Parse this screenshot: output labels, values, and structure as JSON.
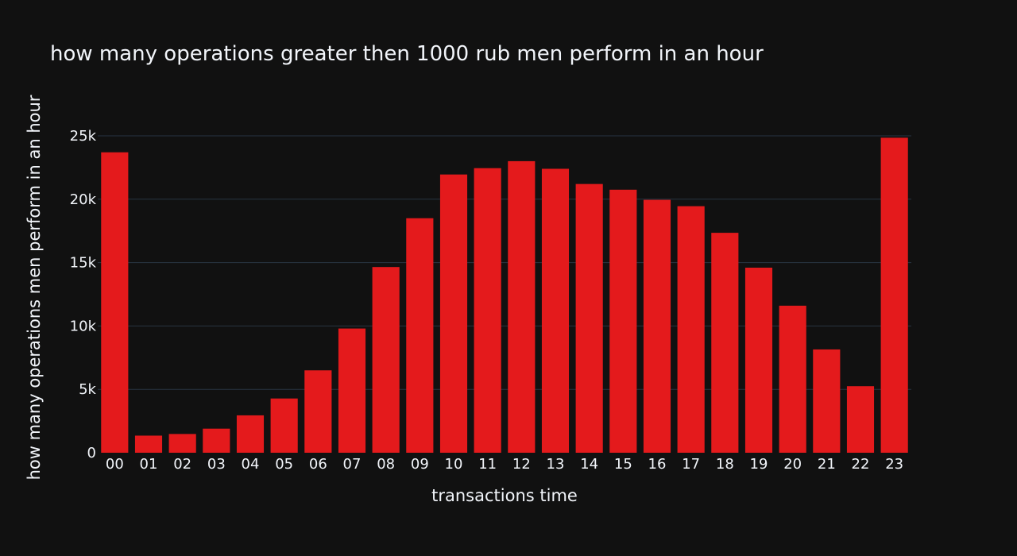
{
  "chart_data": {
    "type": "bar",
    "title": "how many operations greater then 1000 rub men perform in an hour",
    "xlabel": "transactions time",
    "ylabel": "how many operations men perform in an hour",
    "categories": [
      "00",
      "01",
      "02",
      "03",
      "04",
      "05",
      "06",
      "07",
      "08",
      "09",
      "10",
      "11",
      "12",
      "13",
      "14",
      "15",
      "16",
      "17",
      "18",
      "19",
      "20",
      "21",
      "22",
      "23"
    ],
    "values": [
      23700,
      1350,
      1480,
      1900,
      2950,
      4280,
      6500,
      9800,
      14650,
      18500,
      21950,
      22450,
      23000,
      22400,
      21200,
      20750,
      19950,
      19450,
      17350,
      14600,
      11600,
      8150,
      5250,
      24850
    ],
    "ylim": [
      0,
      25000
    ],
    "yticks": [
      0,
      5000,
      10000,
      15000,
      20000,
      25000
    ],
    "ytick_labels": [
      "0",
      "5k",
      "10k",
      "15k",
      "20k",
      "25k"
    ],
    "bar_color": "#e41a1c",
    "background_color": "#111111",
    "grid_color": "#283442",
    "grid": true,
    "legend": false
  }
}
